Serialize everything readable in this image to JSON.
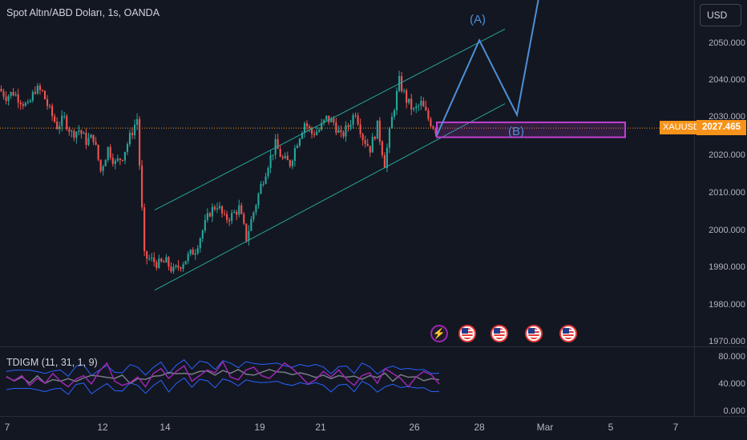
{
  "header": {
    "symbol_title": "Spot Altın/ABD Doları, 1s, OANDA",
    "currency": "USD"
  },
  "indicator": {
    "title": "TDIGM (11, 31, 1, 9)",
    "axis_labels": [
      "80.000",
      "40.000",
      "0.000"
    ]
  },
  "price_axis": {
    "labels": [
      "2050.000",
      "2040.000",
      "2030.000",
      "2020.000",
      "2010.000",
      "2000.000",
      "1990.000",
      "1980.000",
      "1970.000"
    ]
  },
  "last_price": {
    "symbol": "XAUUSD",
    "price": "2027.465"
  },
  "time_axis": {
    "labels": [
      "7",
      "12",
      "14",
      "19",
      "21",
      "26",
      "28",
      "Mar",
      "5",
      "7"
    ]
  },
  "annotations": {
    "wave_a": "(A)",
    "wave_b": "(B)"
  },
  "events": [
    "bolt-icon",
    "us-flag-icon",
    "us-flag-icon",
    "us-flag-icon",
    "us-flag-icon"
  ],
  "colors": {
    "background": "#131722",
    "up": "#26a69a",
    "down": "#ef5350",
    "channel": "#26a69a",
    "projection": "#4d8fd6",
    "zone": "#c040d0",
    "last_price": "#f7931a",
    "tdi_main": "#9c27b0",
    "tdi_band": "#2962ff"
  },
  "chart_data": {
    "type": "candlestick",
    "title": "Spot Altın/ABD Doları, 1s, OANDA",
    "y_unit": "USD",
    "ylim": [
      1966,
      2062
    ],
    "x_ticks": [
      "7",
      "12",
      "14",
      "19",
      "21",
      "26",
      "28",
      "Mar",
      "5",
      "7"
    ],
    "last_price": 2027.465,
    "channel": {
      "upper": [
        [
          "14",
          2005.5
        ],
        [
          "28",
          2054
        ]
      ],
      "lower": [
        [
          "14",
          1984
        ],
        [
          "28",
          2034
        ]
      ]
    },
    "zone": {
      "from": "26",
      "to": "5",
      "high": 2029,
      "low": 2025
    },
    "projection_path": [
      2025.5,
      2051,
      2031,
      2062
    ],
    "close_path": [
      2038,
      2036,
      2037,
      2035,
      2033,
      2038,
      2037,
      2032,
      2028,
      2030,
      2026,
      2027,
      2024,
      2025,
      2016,
      2022,
      2018,
      2020,
      2025,
      2030,
      1993,
      1992,
      1991,
      1991.5,
      1989,
      1991,
      1993,
      1995,
      2000,
      2005,
      2007,
      2003,
      2004,
      2006,
      1998,
      2005,
      2012,
      2018,
      2023,
      2019,
      2018,
      2024,
      2029,
      2026,
      2027,
      2030,
      2029,
      2025,
      2028,
      2032,
      2025,
      2022,
      2028,
      2018,
      2030,
      2040,
      2035,
      2032,
      2034,
      2030,
      2027
    ],
    "indicator": {
      "name": "TDIGM (11, 31, 1, 9)",
      "ylim": [
        0,
        85
      ],
      "line": [
        50,
        45,
        52,
        38,
        48,
        41,
        55,
        44,
        36,
        47,
        52,
        40,
        58,
        70,
        44,
        38,
        42,
        50,
        36,
        55,
        62,
        48,
        58,
        66,
        44,
        52,
        60,
        56,
        72,
        50,
        46,
        60,
        64,
        52,
        48,
        58,
        70,
        62,
        52,
        40,
        46,
        58,
        50,
        60,
        47,
        38,
        52,
        56,
        41,
        62,
        55,
        48,
        36,
        50,
        58,
        53,
        40
      ]
    }
  }
}
